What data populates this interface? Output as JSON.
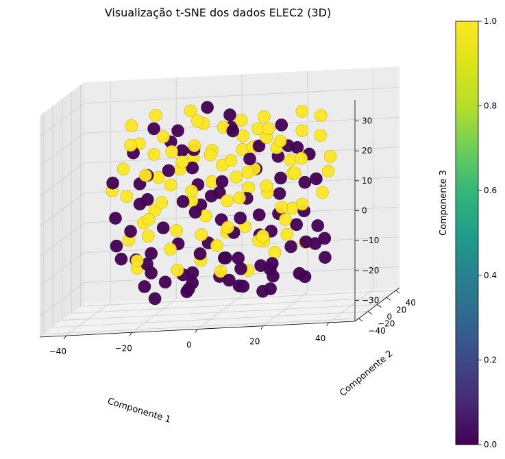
{
  "chart_data": {
    "type": "scatter",
    "projection": "3d",
    "title": "Visualização t-SNE dos dados ELEC2 (3D)",
    "xlabel": "Componente 1",
    "ylabel": "Componente 2",
    "zlabel": "Componente 3",
    "xlim": [
      -48,
      48
    ],
    "ylim": [
      -48,
      48
    ],
    "zlim": [
      -37,
      37
    ],
    "x_ticks": [
      -40,
      -20,
      0,
      20,
      40
    ],
    "y_ticks": [
      -40,
      -20,
      0,
      20,
      40
    ],
    "z_ticks": [
      -30,
      -20,
      -10,
      0,
      10,
      20,
      30
    ],
    "x_tick_labels": [
      "−40",
      "−20",
      "0",
      "20",
      "40"
    ],
    "y_tick_labels": [
      "−40",
      "−20",
      "0",
      "20",
      "40"
    ],
    "z_tick_labels": [
      "−30",
      "−20",
      "−10",
      "0",
      "10",
      "20",
      "30"
    ],
    "grid": true,
    "colormap": "viridis",
    "color_range": [
      0,
      1
    ],
    "colors": {
      "class_0": "#440154",
      "class_1": "#fde725",
      "mid": "#21918c"
    },
    "colorbar": {
      "ticks": [
        0.0,
        0.2,
        0.4,
        0.6,
        0.8,
        1.0
      ],
      "tick_labels": [
        "0.0",
        "0.2",
        "0.4",
        "0.6",
        "0.8",
        "1.0"
      ]
    },
    "series": [
      {
        "value": 0,
        "points": [
          [
            -20,
            -15,
            -18
          ],
          [
            -8,
            10,
            5
          ],
          [
            5,
            -5,
            -10
          ],
          [
            15,
            20,
            12
          ],
          [
            -25,
            5,
            0
          ],
          [
            10,
            -25,
            -20
          ],
          [
            0,
            0,
            -25
          ],
          [
            -15,
            25,
            15
          ],
          [
            25,
            5,
            -5
          ],
          [
            -5,
            -20,
            20
          ],
          [
            20,
            -10,
            8
          ],
          [
            -30,
            -10,
            -12
          ],
          [
            8,
            30,
            -15
          ],
          [
            -12,
            -5,
            25
          ],
          [
            30,
            15,
            -22
          ],
          [
            -2,
            18,
            -8
          ],
          [
            12,
            0,
            18
          ],
          [
            -18,
            -28,
            5
          ],
          [
            22,
            28,
            2
          ],
          [
            -28,
            18,
            -20
          ],
          [
            5,
            -30,
            10
          ],
          [
            -10,
            12,
            -28
          ],
          [
            18,
            -18,
            -28
          ],
          [
            0,
            25,
            22
          ],
          [
            -22,
            0,
            10
          ],
          [
            28,
            -5,
            15
          ],
          [
            -6,
            -10,
            -2
          ],
          [
            14,
            12,
            -12
          ],
          [
            -16,
            8,
            20
          ],
          [
            6,
            -14,
            25
          ],
          [
            26,
            22,
            -18
          ],
          [
            -24,
            -22,
            -6
          ],
          [
            2,
            8,
            28
          ],
          [
            -4,
            28,
            0
          ],
          [
            16,
            -28,
            -2
          ],
          [
            -26,
            12,
            6
          ],
          [
            10,
            18,
            -24
          ],
          [
            -14,
            -18,
            -24
          ],
          [
            24,
            -22,
            20
          ],
          [
            -8,
            -2,
            12
          ],
          [
            3,
            -8,
            -18
          ],
          [
            -20,
            20,
            -10
          ],
          [
            18,
            6,
            24
          ],
          [
            -12,
            -25,
            14
          ],
          [
            8,
            22,
            8
          ],
          [
            32,
            -15,
            -8
          ],
          [
            -32,
            2,
            -4
          ],
          [
            0,
            -18,
            4
          ],
          [
            14,
            -6,
            -30
          ],
          [
            -6,
            16,
            30
          ],
          [
            20,
            26,
            14
          ],
          [
            -18,
            -12,
            -30
          ],
          [
            28,
            10,
            5
          ],
          [
            -10,
            30,
            -4
          ],
          [
            6,
            2,
            -6
          ],
          [
            -2,
            -28,
            -14
          ],
          [
            22,
            -2,
            -16
          ],
          [
            -26,
            -2,
            18
          ],
          [
            12,
            -20,
            16
          ],
          [
            -16,
            24,
            -16
          ],
          [
            4,
            14,
            -30
          ],
          [
            -30,
            -18,
            10
          ],
          [
            30,
            -26,
            -12
          ],
          [
            16,
            16,
            0
          ],
          [
            -4,
            4,
            -14
          ],
          [
            10,
            -12,
            2
          ],
          [
            -22,
            14,
            24
          ],
          [
            24,
            14,
            -28
          ],
          [
            -8,
            -14,
            -28
          ],
          [
            2,
            26,
            -22
          ],
          [
            18,
            -14,
            -20
          ],
          [
            -12,
            6,
            0
          ],
          [
            -20,
            -6,
            -22
          ],
          [
            6,
            -22,
            -24
          ],
          [
            22,
            10,
            -10
          ],
          [
            -28,
            -14,
            -16
          ],
          [
            12,
            24,
            -26
          ],
          [
            -6,
            -24,
            -26
          ],
          [
            26,
            -12,
            -24
          ],
          [
            0,
            10,
            -20
          ],
          [
            -14,
            20,
            -26
          ],
          [
            16,
            2,
            -26
          ],
          [
            -24,
            8,
            -28
          ],
          [
            8,
            -6,
            -28
          ],
          [
            32,
            0,
            -14
          ],
          [
            -4,
            -30,
            -20
          ],
          [
            14,
            28,
            -8
          ],
          [
            -18,
            -20,
            -14
          ]
        ]
      },
      {
        "value": 1,
        "points": [
          [
            -20,
            10,
            8
          ],
          [
            -10,
            -10,
            15
          ],
          [
            5,
            15,
            20
          ],
          [
            15,
            -5,
            5
          ],
          [
            -25,
            -15,
            22
          ],
          [
            0,
            -20,
            18
          ],
          [
            20,
            15,
            -5
          ],
          [
            -15,
            0,
            -15
          ],
          [
            10,
            25,
            25
          ],
          [
            25,
            -15,
            10
          ],
          [
            -5,
            5,
            -5
          ],
          [
            -30,
            5,
            12
          ],
          [
            8,
            -10,
            28
          ],
          [
            -12,
            25,
            -2
          ],
          [
            30,
            5,
            20
          ],
          [
            -2,
            -25,
            -8
          ],
          [
            12,
            10,
            -15
          ],
          [
            -18,
            -25,
            -2
          ],
          [
            22,
            -25,
            22
          ],
          [
            -28,
            25,
            18
          ],
          [
            5,
            0,
            8
          ],
          [
            -10,
            -20,
            -20
          ],
          [
            18,
            25,
            10
          ],
          [
            0,
            15,
            -12
          ],
          [
            -22,
            18,
            28
          ],
          [
            28,
            20,
            25
          ],
          [
            -6,
            -5,
            28
          ],
          [
            14,
            -15,
            -12
          ],
          [
            -16,
            -12,
            2
          ],
          [
            6,
            20,
            2
          ],
          [
            26,
            0,
            -15
          ],
          [
            -24,
            -8,
            -20
          ],
          [
            2,
            -12,
            -22
          ],
          [
            -4,
            12,
            16
          ],
          [
            16,
            10,
            16
          ],
          [
            -26,
            20,
            -8
          ],
          [
            10,
            -28,
            4
          ],
          [
            -14,
            14,
            10
          ],
          [
            24,
            8,
            28
          ],
          [
            -8,
            22,
            24
          ],
          [
            3,
            28,
            14
          ],
          [
            -20,
            -18,
            12
          ],
          [
            18,
            -22,
            26
          ],
          [
            -12,
            -8,
            -8
          ],
          [
            8,
            5,
            -24
          ],
          [
            32,
            -5,
            2
          ],
          [
            -32,
            -5,
            6
          ],
          [
            0,
            8,
            24
          ],
          [
            14,
            20,
            -20
          ],
          [
            -6,
            -18,
            6
          ],
          [
            20,
            -8,
            -2
          ],
          [
            -18,
            6,
            22
          ],
          [
            28,
            -20,
            0
          ],
          [
            -10,
            8,
            30
          ],
          [
            6,
            -25,
            -6
          ],
          [
            -2,
            20,
            10
          ],
          [
            22,
            2,
            8
          ],
          [
            -26,
            -12,
            -10
          ],
          [
            12,
            -2,
            24
          ],
          [
            -16,
            -28,
            20
          ],
          [
            4,
            -4,
            14
          ],
          [
            -30,
            12,
            2
          ],
          [
            30,
            22,
            6
          ],
          [
            16,
            -12,
            22
          ],
          [
            -4,
            -12,
            -18
          ],
          [
            10,
            4,
            10
          ],
          [
            -22,
            -22,
            -16
          ],
          [
            24,
            -28,
            -4
          ],
          [
            -8,
            16,
            -20
          ],
          [
            2,
            2,
            0
          ],
          [
            18,
            18,
            -14
          ],
          [
            -12,
            28,
            12
          ],
          [
            -20,
            2,
            -2
          ],
          [
            6,
            12,
            -10
          ],
          [
            22,
            22,
            20
          ],
          [
            -28,
            8,
            26
          ],
          [
            12,
            -24,
            12
          ],
          [
            -6,
            26,
            4
          ],
          [
            26,
            -8,
            14
          ],
          [
            0,
            -6,
            -14
          ],
          [
            -14,
            -4,
            18
          ],
          [
            16,
            -20,
            -10
          ],
          [
            -24,
            16,
            -12
          ],
          [
            8,
            16,
            16
          ],
          [
            32,
            12,
            12
          ],
          [
            -4,
            -26,
            22
          ],
          [
            14,
            4,
            2
          ],
          [
            -18,
            22,
            4
          ]
        ]
      }
    ]
  }
}
